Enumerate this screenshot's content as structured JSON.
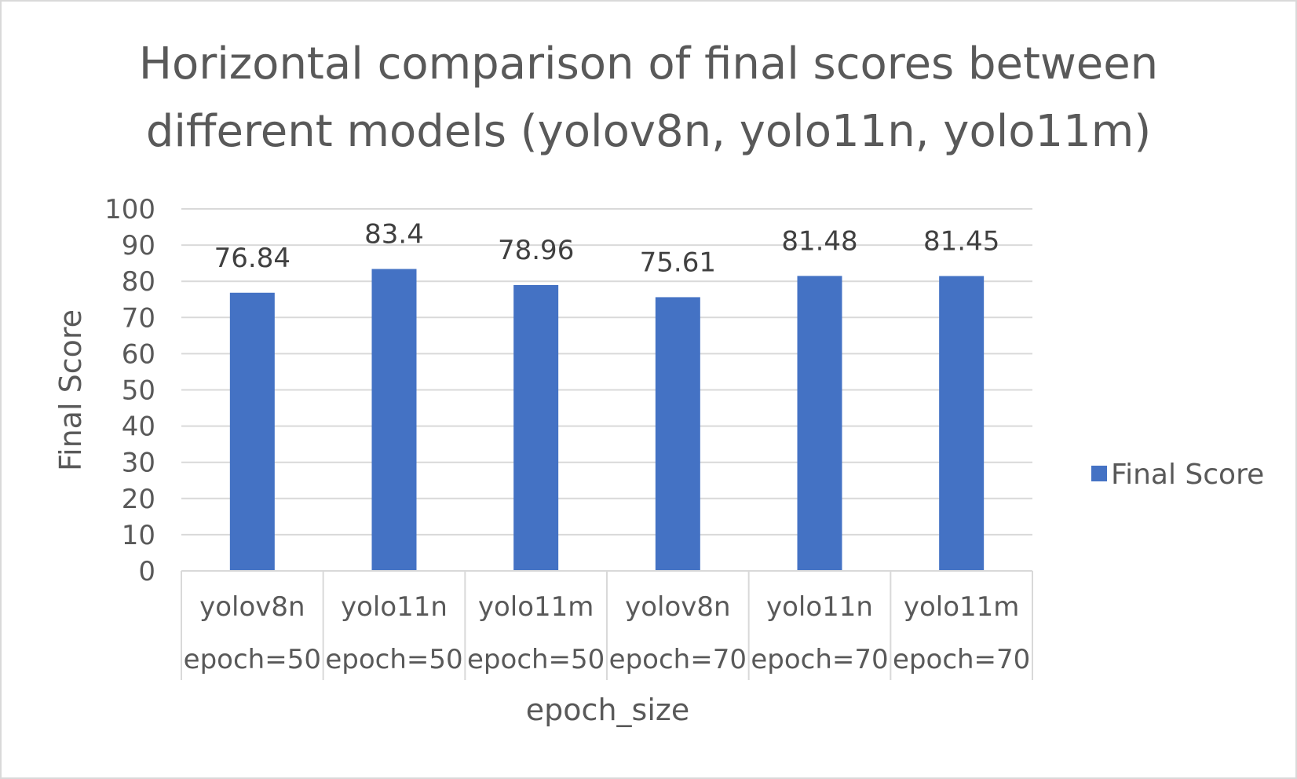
{
  "chart_data": {
    "type": "bar",
    "title_lines": [
      "Horizontal comparison of final scores between",
      "different models (yolov8n, yolo11n, yolo11m)"
    ],
    "categories": [
      [
        "yolov8n",
        "epoch=50"
      ],
      [
        "yolo11n",
        "epoch=50"
      ],
      [
        "yolo11m",
        "epoch=50"
      ],
      [
        "yolov8n",
        "epoch=70"
      ],
      [
        "yolo11n",
        "epoch=70"
      ],
      [
        "yolo11m",
        "epoch=70"
      ]
    ],
    "series": [
      {
        "name": "Final Score",
        "values": [
          76.84,
          83.4,
          78.96,
          75.61,
          81.48,
          81.45
        ],
        "value_labels": [
          "76.84",
          "83.4",
          "78.96",
          "75.61",
          "81.48",
          "81.45"
        ],
        "color": "#4472c4"
      }
    ],
    "xlabel": "epoch_size",
    "ylabel": "Final Score",
    "ylim": [
      0,
      100
    ],
    "yticks": [
      0,
      10,
      20,
      30,
      40,
      50,
      60,
      70,
      80,
      90,
      100
    ],
    "grid": true,
    "legend_position": "right",
    "colors": {
      "bar": "#4472c4",
      "grid": "#d9d9d9",
      "text": "#595959"
    }
  }
}
